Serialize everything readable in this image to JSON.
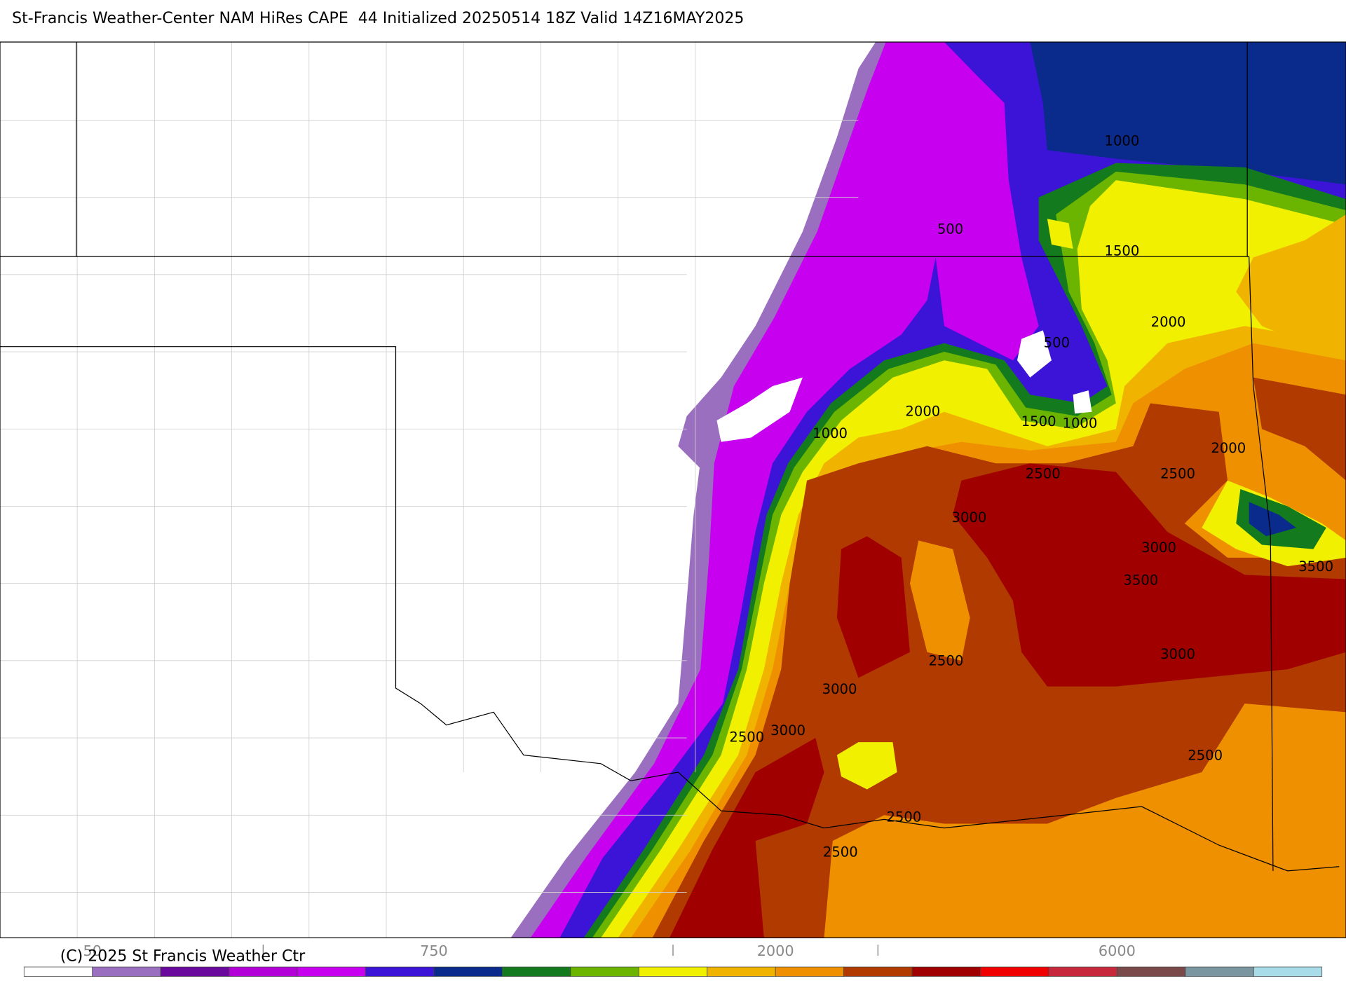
{
  "header": {
    "title": "St-Francis Weather-Center NAM HiRes CAPE  44 Initialized 20250514 18Z Valid 14Z16MAY2025"
  },
  "contour_labels": [
    1000,
    500,
    1500,
    2000,
    500,
    2000,
    1500,
    1000,
    1000,
    2000,
    2500,
    2500,
    3000,
    3000,
    3500,
    3500,
    3000,
    2500,
    3000,
    3000,
    2500,
    2500,
    2500,
    2500
  ],
  "colorbar": {
    "labels": [
      "50",
      "750",
      "2000",
      "6000"
    ]
  },
  "copyright": "(C) 2025 St Francis Weather Ctr"
}
